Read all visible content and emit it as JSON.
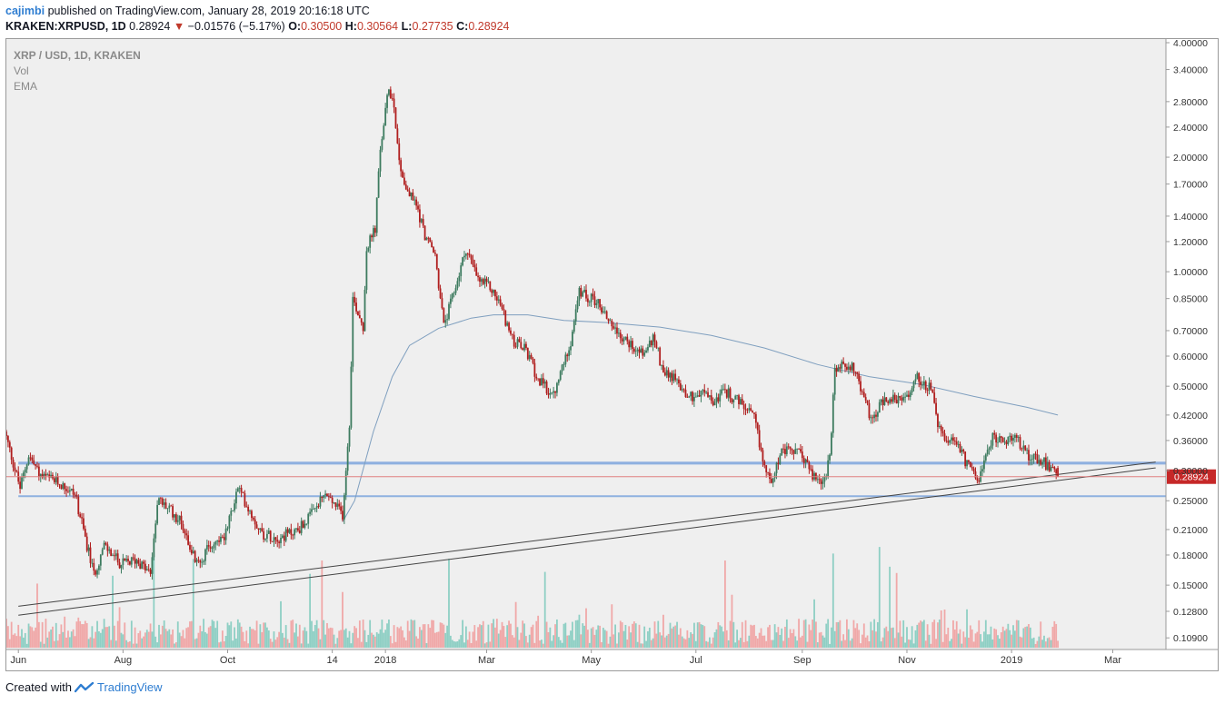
{
  "header": {
    "author": "cajimbi",
    "published_text": "published on TradingView.com, January 28, 2019 20:16:18 UTC",
    "symbol": "KRAKEN:XRPUSD, 1D",
    "last_price": "0.28924",
    "change": "−0.01576 (−5.17%)",
    "o_label": "O:",
    "o_value": "0.30500",
    "h_label": "H:",
    "h_value": "0.30564",
    "l_label": "L:",
    "l_value": "0.27735",
    "c_label": "C:",
    "c_value": "0.28924"
  },
  "legend": {
    "title": "XRP / USD, 1D, KRAKEN",
    "vol": "Vol",
    "ema": "EMA"
  },
  "footer": {
    "created_with": "Created with",
    "brand": "TradingView"
  },
  "colors": {
    "up": "#3d7b5f",
    "down": "#b01e1e",
    "ema": "#7f9fbf",
    "support_band": "#8fb1e0",
    "trendline": "#444444",
    "price_line": "#e08080",
    "price_label_bg": "#c62828",
    "vol_up": "#8ecfc4",
    "vol_down": "#f0a8a8",
    "plot_bg": "#efefef"
  },
  "chart_data": {
    "type": "candlestick",
    "scale": "log",
    "ylim": [
      0.105,
      4.0
    ],
    "y_ticks": [
      "4.00000",
      "3.40000",
      "2.80000",
      "2.40000",
      "2.00000",
      "1.70000",
      "1.40000",
      "1.20000",
      "1.00000",
      "0.85000",
      "0.70000",
      "0.60000",
      "0.50000",
      "0.42000",
      "0.36000",
      "0.30000",
      "0.25000",
      "0.21000",
      "0.18000",
      "0.15000",
      "0.12800",
      "0.10900"
    ],
    "x_ticks": [
      "Jun",
      "Aug",
      "Oct",
      "14",
      "2018",
      "Mar",
      "May",
      "Jul",
      "Sep",
      "Nov",
      "2019",
      "Mar"
    ],
    "x_tick_dates": [
      "2017-06-01",
      "2017-08-01",
      "2017-10-01",
      "2017-12-01",
      "2018-01-01",
      "2018-03-01",
      "2018-05-01",
      "2018-07-01",
      "2018-09-01",
      "2018-11-01",
      "2019-01-01",
      "2019-03-01"
    ],
    "x_range": [
      "2017-05-25",
      "2019-04-01"
    ],
    "current_price": 0.28924,
    "current_price_label": "0.28924",
    "price_path": [
      [
        "2017-05-25",
        0.38
      ],
      [
        "2017-06-03",
        0.27
      ],
      [
        "2017-06-08",
        0.33
      ],
      [
        "2017-06-15",
        0.29
      ],
      [
        "2017-06-25",
        0.28
      ],
      [
        "2017-07-05",
        0.26
      ],
      [
        "2017-07-16",
        0.16
      ],
      [
        "2017-07-22",
        0.19
      ],
      [
        "2017-08-01",
        0.17
      ],
      [
        "2017-08-10",
        0.175
      ],
      [
        "2017-08-18",
        0.16
      ],
      [
        "2017-08-22",
        0.25
      ],
      [
        "2017-08-28",
        0.24
      ],
      [
        "2017-09-05",
        0.22
      ],
      [
        "2017-09-14",
        0.17
      ],
      [
        "2017-09-22",
        0.19
      ],
      [
        "2017-10-01",
        0.205
      ],
      [
        "2017-10-08",
        0.27
      ],
      [
        "2017-10-14",
        0.24
      ],
      [
        "2017-10-22",
        0.205
      ],
      [
        "2017-11-01",
        0.2
      ],
      [
        "2017-11-12",
        0.21
      ],
      [
        "2017-11-20",
        0.23
      ],
      [
        "2017-11-28",
        0.26
      ],
      [
        "2017-12-08",
        0.23
      ],
      [
        "2017-12-12",
        0.4
      ],
      [
        "2017-12-14",
        0.85
      ],
      [
        "2017-12-20",
        0.72
      ],
      [
        "2017-12-22",
        1.15
      ],
      [
        "2017-12-27",
        1.3
      ],
      [
        "2017-12-30",
        2.1
      ],
      [
        "2018-01-04",
        3.05
      ],
      [
        "2018-01-07",
        2.75
      ],
      [
        "2018-01-10",
        1.95
      ],
      [
        "2018-01-14",
        1.65
      ],
      [
        "2018-01-20",
        1.5
      ],
      [
        "2018-01-25",
        1.25
      ],
      [
        "2018-01-31",
        1.1
      ],
      [
        "2018-02-05",
        0.72
      ],
      [
        "2018-02-10",
        0.85
      ],
      [
        "2018-02-18",
        1.15
      ],
      [
        "2018-02-25",
        0.95
      ],
      [
        "2018-03-04",
        0.91
      ],
      [
        "2018-03-10",
        0.82
      ],
      [
        "2018-03-17",
        0.66
      ],
      [
        "2018-03-25",
        0.62
      ],
      [
        "2018-04-01",
        0.52
      ],
      [
        "2018-04-10",
        0.47
      ],
      [
        "2018-04-20",
        0.66
      ],
      [
        "2018-04-25",
        0.88
      ],
      [
        "2018-05-05",
        0.84
      ],
      [
        "2018-05-12",
        0.75
      ],
      [
        "2018-05-20",
        0.67
      ],
      [
        "2018-06-01",
        0.61
      ],
      [
        "2018-06-08",
        0.67
      ],
      [
        "2018-06-12",
        0.56
      ],
      [
        "2018-06-20",
        0.52
      ],
      [
        "2018-06-28",
        0.47
      ],
      [
        "2018-07-08",
        0.48
      ],
      [
        "2018-07-12",
        0.45
      ],
      [
        "2018-07-18",
        0.49
      ],
      [
        "2018-07-28",
        0.45
      ],
      [
        "2018-08-05",
        0.41
      ],
      [
        "2018-08-10",
        0.32
      ],
      [
        "2018-08-14",
        0.28
      ],
      [
        "2018-08-20",
        0.33
      ],
      [
        "2018-08-26",
        0.34
      ],
      [
        "2018-09-02",
        0.33
      ],
      [
        "2018-09-08",
        0.29
      ],
      [
        "2018-09-14",
        0.28
      ],
      [
        "2018-09-18",
        0.32
      ],
      [
        "2018-09-21",
        0.55
      ],
      [
        "2018-09-24",
        0.56
      ],
      [
        "2018-10-01",
        0.57
      ],
      [
        "2018-10-08",
        0.47
      ],
      [
        "2018-10-12",
        0.41
      ],
      [
        "2018-10-18",
        0.45
      ],
      [
        "2018-10-25",
        0.46
      ],
      [
        "2018-11-02",
        0.46
      ],
      [
        "2018-11-07",
        0.53
      ],
      [
        "2018-11-12",
        0.51
      ],
      [
        "2018-11-16",
        0.49
      ],
      [
        "2018-11-20",
        0.4
      ],
      [
        "2018-11-25",
        0.35
      ],
      [
        "2018-12-01",
        0.36
      ],
      [
        "2018-12-07",
        0.31
      ],
      [
        "2018-12-14",
        0.29
      ],
      [
        "2018-12-18",
        0.32
      ],
      [
        "2018-12-22",
        0.37
      ],
      [
        "2018-12-28",
        0.36
      ],
      [
        "2019-01-06",
        0.36
      ],
      [
        "2019-01-12",
        0.33
      ],
      [
        "2019-01-20",
        0.32
      ],
      [
        "2019-01-28",
        0.289
      ]
    ],
    "ema_path": [
      [
        "2017-12-07",
        0.22
      ],
      [
        "2017-12-14",
        0.25
      ],
      [
        "2017-12-25",
        0.38
      ],
      [
        "2018-01-05",
        0.53
      ],
      [
        "2018-01-15",
        0.64
      ],
      [
        "2018-02-01",
        0.71
      ],
      [
        "2018-02-20",
        0.755
      ],
      [
        "2018-03-05",
        0.77
      ],
      [
        "2018-03-25",
        0.77
      ],
      [
        "2018-04-15",
        0.745
      ],
      [
        "2018-05-10",
        0.735
      ],
      [
        "2018-06-10",
        0.715
      ],
      [
        "2018-07-10",
        0.68
      ],
      [
        "2018-08-10",
        0.63
      ],
      [
        "2018-09-10",
        0.57
      ],
      [
        "2018-10-10",
        0.53
      ],
      [
        "2018-11-10",
        0.505
      ],
      [
        "2018-12-10",
        0.47
      ],
      [
        "2019-01-10",
        0.44
      ],
      [
        "2019-01-28",
        0.42
      ]
    ],
    "horizontal_lines": [
      0.315,
      0.313,
      0.257
    ],
    "trendlines": [
      [
        [
          "2017-06-01",
          0.132
        ],
        [
          "2019-03-26",
          0.316
        ]
      ],
      [
        [
          "2017-06-01",
          0.125
        ],
        [
          "2019-03-26",
          0.305
        ]
      ]
    ]
  }
}
